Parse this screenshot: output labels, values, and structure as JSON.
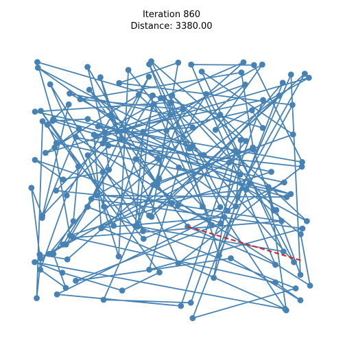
{
  "chart_data": {
    "type": "line",
    "title_lines": [
      "Iteration 860",
      "Distance: 3380.00"
    ],
    "xlim": [
      0,
      100
    ],
    "ylim": [
      0,
      100
    ],
    "axes_visible": false,
    "grid": false,
    "route": {
      "color": "#4682b4",
      "points": [
        [
          3.4,
          21.0
        ],
        [
          12.8,
          17.1
        ],
        [
          33.2,
          10.5
        ],
        [
          45.9,
          17.2
        ],
        [
          5.5,
          76.8
        ],
        [
          18.3,
          56.3
        ],
        [
          16.6,
          36.1
        ],
        [
          9.8,
          24.0
        ],
        [
          14.0,
          11.5
        ],
        [
          5.3,
          18.2
        ],
        [
          14.3,
          45.6
        ],
        [
          29.6,
          75.0
        ],
        [
          52.3,
          20.5
        ],
        [
          94.4,
          56.2
        ],
        [
          28.5,
          64.0
        ],
        [
          6.0,
          38.1
        ],
        [
          2.3,
          48.4
        ],
        [
          5.1,
          23.8
        ],
        [
          14.5,
          22.0
        ],
        [
          45.8,
          51.8
        ],
        [
          61.8,
          83.0
        ],
        [
          91.7,
          21.0
        ],
        [
          57.2,
          63.8
        ],
        [
          3.5,
          76.5
        ],
        [
          49.9,
          79.9
        ],
        [
          66.2,
          23.5
        ],
        [
          76.6,
          50.0
        ],
        [
          91.2,
          79.0
        ],
        [
          32.2,
          87.1
        ],
        [
          52.3,
          94.6
        ],
        [
          45.0,
          50.3
        ],
        [
          91.4,
          68.1
        ],
        [
          60.3,
          91.3
        ],
        [
          88.1,
          24.9
        ],
        [
          37.7,
          34.3
        ],
        [
          40.3,
          69.1
        ],
        [
          80.9,
          93.9
        ],
        [
          65.0,
          69.8
        ],
        [
          96.8,
          89.0
        ],
        [
          7.1,
          61.3
        ],
        [
          38.8,
          82.7
        ],
        [
          61.0,
          60.5
        ],
        [
          86.7,
          82.4
        ],
        [
          43.2,
          37.7
        ],
        [
          48.3,
          69.5
        ],
        [
          74.5,
          94.7
        ],
        [
          46.3,
          81.5
        ],
        [
          57.2,
          70.7
        ],
        [
          23.6,
          68.0
        ],
        [
          26.1,
          33.5
        ],
        [
          77.9,
          62.5
        ],
        [
          73.8,
          91.0
        ],
        [
          18.9,
          81.1
        ],
        [
          53.9,
          77.3
        ],
        [
          38.5,
          34.1
        ],
        [
          43.6,
          82.5
        ],
        [
          14.1,
          27.5
        ],
        [
          75.1,
          86.5
        ],
        [
          24.3,
          67.5
        ],
        [
          47.3,
          81.5
        ],
        [
          56.1,
          62.9
        ],
        [
          35.3,
          91.9
        ],
        [
          32.0,
          23.1
        ],
        [
          21.5,
          60.4
        ],
        [
          42.4,
          38.2
        ],
        [
          95.4,
          90.5
        ],
        [
          69.1,
          39.9
        ],
        [
          43.1,
          95.1
        ],
        [
          73.6,
          66.0
        ],
        [
          71.9,
          41.6
        ],
        [
          4.5,
          92.7
        ],
        [
          73.4,
          53.3
        ],
        [
          21.5,
          73.8
        ],
        [
          9.5,
          73.1
        ],
        [
          90.6,
          46.1
        ],
        [
          10.8,
          65.0
        ],
        [
          7.7,
          71.7
        ],
        [
          15.0,
          79.2
        ],
        [
          5.9,
          37.3
        ],
        [
          18.5,
          70.2
        ],
        [
          10.2,
          63.3
        ],
        [
          15.4,
          30.8
        ],
        [
          84.0,
          54.3
        ],
        [
          32.9,
          66.5
        ],
        [
          25.8,
          89.2
        ],
        [
          40.3,
          32.4
        ],
        [
          8.7,
          86.6
        ],
        [
          30.3,
          34.4
        ],
        [
          44.0,
          79.3
        ],
        [
          60.6,
          41.5
        ],
        [
          22.0,
          84.6
        ],
        [
          55.5,
          34.1
        ],
        [
          85.4,
          20.0
        ],
        [
          56.7,
          93.9
        ],
        [
          78.1,
          93.7
        ],
        [
          94.5,
          57.9
        ],
        [
          25.0,
          71.1
        ],
        [
          45.3,
          59.2
        ],
        [
          24.6,
          45.6
        ],
        [
          89.2,
          45.0
        ],
        [
          52.5,
          55.9
        ],
        [
          42.4,
          18.2
        ],
        [
          94.6,
          33.4
        ],
        [
          22.7,
          44.3
        ],
        [
          42.3,
          89.4
        ],
        [
          31.6,
          69.3
        ],
        [
          49.6,
          75.4
        ],
        [
          15.3,
          83.2
        ],
        [
          96.1,
          36.1
        ],
        [
          50.2,
          82.5
        ],
        [
          85.7,
          40.2
        ],
        [
          93.9,
          16.3
        ],
        [
          90.7,
          90.2
        ],
        [
          72.6,
          45.1
        ],
        [
          64.4,
          15.2
        ],
        [
          71.8,
          62.1
        ],
        [
          8.3,
          24.0
        ],
        [
          21.4,
          41.4
        ],
        [
          92.3,
          11.3
        ],
        [
          57.2,
          0.3
        ],
        [
          87.9,
          87.2
        ],
        [
          52.2,
          42.0
        ],
        [
          87.5,
          36.1
        ],
        [
          16.5,
          30.0
        ],
        [
          85.4,
          13.5
        ],
        [
          93.9,
          6.9
        ],
        [
          70.2,
          22.4
        ],
        [
          17.4,
          14.1
        ],
        [
          66.8,
          35.4
        ],
        [
          3.5,
          58.7
        ],
        [
          13.1,
          51.5
        ],
        [
          26.6,
          54.2
        ],
        [
          27.0,
          41.5
        ],
        [
          75.5,
          47.8
        ],
        [
          94.0,
          31.3
        ],
        [
          97.2,
          12.3
        ],
        [
          17.4,
          67.1
        ],
        [
          88.4,
          50.4
        ],
        [
          11.0,
          9.1
        ],
        [
          53.2,
          4.8
        ],
        [
          69.6,
          57.7
        ],
        [
          75.4,
          65.7
        ],
        [
          66.6,
          75.4
        ],
        [
          37.8,
          59.0
        ],
        [
          50.2,
          42.8
        ],
        [
          10.7,
          47.4
        ],
        [
          26.6,
          64.8
        ],
        [
          77.4,
          77.0
        ],
        [
          81.1,
          70.5
        ],
        [
          4.3,
          94.8
        ],
        [
          9.8,
          73.8
        ],
        [
          27.3,
          68.7
        ],
        [
          81.2,
          80.8
        ],
        [
          56.6,
          6.0
        ],
        [
          26.9,
          7.1
        ],
        [
          43.8,
          49.5
        ],
        [
          63.8,
          34.6
        ],
        [
          42.4,
          94.0
        ],
        [
          66.6,
          41.3
        ],
        [
          40.5,
          29.6
        ],
        [
          6.1,
          73.0
        ],
        [
          4.1,
          7.7
        ],
        [
          5.5,
          22.3
        ],
        [
          13.1,
          27.5
        ],
        [
          28.7,
          55.1
        ],
        [
          27.4,
          66.4
        ],
        [
          21.4,
          93.0
        ],
        [
          45.2,
          49.7
        ],
        [
          77.7,
          63.3
        ],
        [
          84.8,
          40.1
        ],
        [
          83.0,
          48.7
        ],
        [
          89.1,
          3.2
        ],
        [
          68.0,
          37.6
        ],
        [
          26.2,
          33.7
        ],
        [
          88.7,
          3.7
        ]
      ]
    },
    "swap": {
      "color": "#d62728",
      "points": [
        [
          55.5,
          34.1
        ],
        [
          94.5,
          21.5
        ]
      ]
    }
  }
}
